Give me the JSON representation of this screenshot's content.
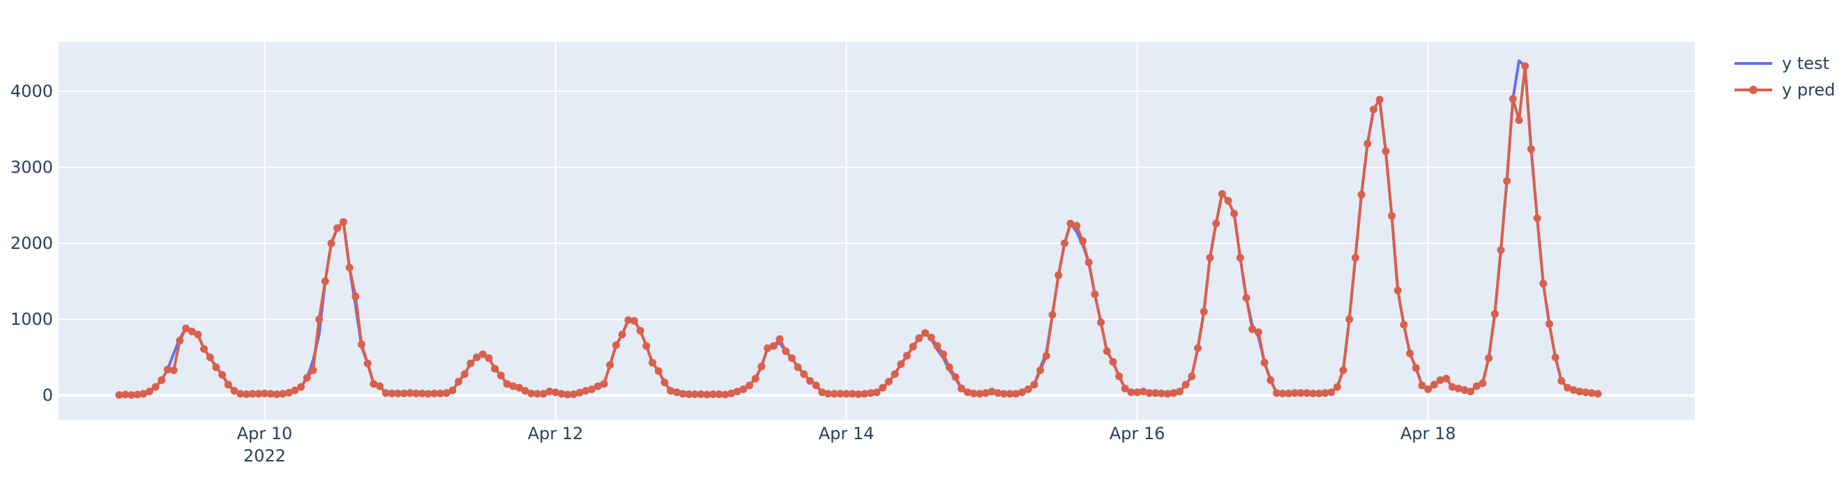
{
  "chart_data": {
    "type": "line",
    "x_axis": {
      "type": "date",
      "range": [
        "2022-04-08 14:00",
        "2022-04-19 20:00"
      ],
      "ticks": [
        {
          "value": "2022-04-10 00:00",
          "label": "Apr 10",
          "sublabel": "2022"
        },
        {
          "value": "2022-04-12 00:00",
          "label": "Apr 12"
        },
        {
          "value": "2022-04-14 00:00",
          "label": "Apr 14"
        },
        {
          "value": "2022-04-16 00:00",
          "label": "Apr 16"
        },
        {
          "value": "2022-04-18 00:00",
          "label": "Apr 18"
        }
      ]
    },
    "y_axis": {
      "range": [
        -320,
        4650
      ],
      "ticks": [
        {
          "value": 0,
          "label": "0"
        },
        {
          "value": 1000,
          "label": "1000"
        },
        {
          "value": 2000,
          "label": "2000"
        },
        {
          "value": 3000,
          "label": "3000"
        },
        {
          "value": 4000,
          "label": "4000"
        }
      ]
    },
    "grid": true,
    "legend_position": "top-right",
    "x_start": "2022-04-09 00:00",
    "x_step_hours": 1,
    "series": [
      {
        "name": "y test",
        "color": "#636efa",
        "markers": false,
        "values": [
          5,
          10,
          5,
          10,
          20,
          50,
          110,
          200,
          340,
          550,
          750,
          880,
          840,
          800,
          610,
          500,
          370,
          270,
          140,
          60,
          20,
          15,
          20,
          20,
          25,
          20,
          15,
          20,
          35,
          65,
          110,
          230,
          460,
          800,
          1500,
          2000,
          2200,
          2280,
          1680,
          1180,
          640,
          420,
          150,
          120,
          30,
          25,
          25,
          25,
          30,
          25,
          25,
          20,
          25,
          25,
          30,
          65,
          180,
          280,
          420,
          500,
          540,
          490,
          350,
          260,
          150,
          120,
          100,
          60,
          25,
          20,
          20,
          50,
          40,
          20,
          10,
          15,
          35,
          60,
          80,
          120,
          150,
          400,
          660,
          800,
          990,
          980,
          850,
          650,
          430,
          320,
          170,
          60,
          40,
          20,
          15,
          15,
          15,
          10,
          15,
          15,
          10,
          25,
          50,
          80,
          130,
          220,
          380,
          620,
          650,
          690,
          580,
          490,
          370,
          280,
          190,
          130,
          40,
          20,
          20,
          20,
          20,
          20,
          15,
          20,
          30,
          40,
          100,
          180,
          280,
          410,
          520,
          640,
          750,
          820,
          740,
          600,
          490,
          330,
          220,
          90,
          40,
          25,
          20,
          30,
          50,
          30,
          20,
          20,
          20,
          40,
          80,
          140,
          360,
          560,
          1060,
          1580,
          2000,
          2260,
          2150,
          1980,
          1750,
          1330,
          960,
          580,
          440,
          250,
          90,
          40,
          40,
          50,
          30,
          30,
          25,
          20,
          30,
          50,
          140,
          250,
          620,
          1100,
          1810,
          2260,
          2650,
          2560,
          2390,
          1810,
          1280,
          920,
          770,
          430,
          200,
          30,
          25,
          25,
          30,
          30,
          30,
          25,
          25,
          30,
          40,
          110,
          330,
          1000,
          1810,
          2640,
          3310,
          3760,
          3890,
          3210,
          2360,
          1380,
          930,
          550,
          360,
          130,
          80,
          140,
          200,
          220,
          110,
          90,
          70,
          50,
          120,
          160,
          490,
          1070,
          1910,
          2820,
          3900,
          4400,
          4330,
          3240,
          2330,
          1470,
          940,
          500,
          190,
          100,
          70,
          50,
          40,
          30,
          20
        ]
      },
      {
        "name": "y pred",
        "color": "#d9604c",
        "markers": true,
        "values": [
          5,
          10,
          5,
          10,
          20,
          50,
          110,
          200,
          340,
          330,
          720,
          880,
          840,
          800,
          610,
          500,
          370,
          270,
          140,
          60,
          20,
          15,
          20,
          20,
          25,
          20,
          15,
          20,
          35,
          65,
          110,
          230,
          330,
          1000,
          1500,
          2000,
          2200,
          2280,
          1680,
          1300,
          670,
          420,
          150,
          120,
          30,
          25,
          25,
          25,
          30,
          25,
          25,
          20,
          25,
          25,
          30,
          65,
          180,
          280,
          420,
          500,
          540,
          490,
          350,
          260,
          150,
          120,
          100,
          60,
          25,
          20,
          20,
          50,
          40,
          20,
          10,
          15,
          35,
          60,
          80,
          120,
          150,
          400,
          660,
          800,
          990,
          980,
          850,
          650,
          430,
          320,
          170,
          60,
          40,
          20,
          15,
          15,
          15,
          10,
          15,
          15,
          10,
          25,
          50,
          80,
          130,
          220,
          380,
          620,
          650,
          740,
          580,
          490,
          370,
          280,
          190,
          130,
          40,
          20,
          20,
          20,
          20,
          20,
          15,
          20,
          30,
          40,
          100,
          180,
          280,
          410,
          520,
          640,
          750,
          820,
          760,
          650,
          540,
          370,
          240,
          90,
          40,
          25,
          20,
          30,
          50,
          30,
          20,
          20,
          20,
          40,
          80,
          140,
          330,
          520,
          1060,
          1580,
          2000,
          2260,
          2230,
          2030,
          1750,
          1330,
          960,
          580,
          440,
          250,
          90,
          40,
          40,
          50,
          30,
          30,
          25,
          20,
          30,
          50,
          140,
          250,
          620,
          1100,
          1810,
          2260,
          2650,
          2560,
          2390,
          1810,
          1280,
          870,
          830,
          430,
          200,
          30,
          25,
          25,
          30,
          30,
          30,
          25,
          25,
          30,
          40,
          110,
          330,
          1000,
          1810,
          2640,
          3310,
          3760,
          3890,
          3210,
          2360,
          1380,
          930,
          550,
          360,
          130,
          80,
          140,
          200,
          220,
          110,
          90,
          70,
          50,
          120,
          160,
          490,
          1070,
          1910,
          2820,
          3900,
          3620,
          4330,
          3240,
          2330,
          1470,
          940,
          500,
          190,
          100,
          70,
          50,
          40,
          30,
          20
        ]
      }
    ]
  }
}
